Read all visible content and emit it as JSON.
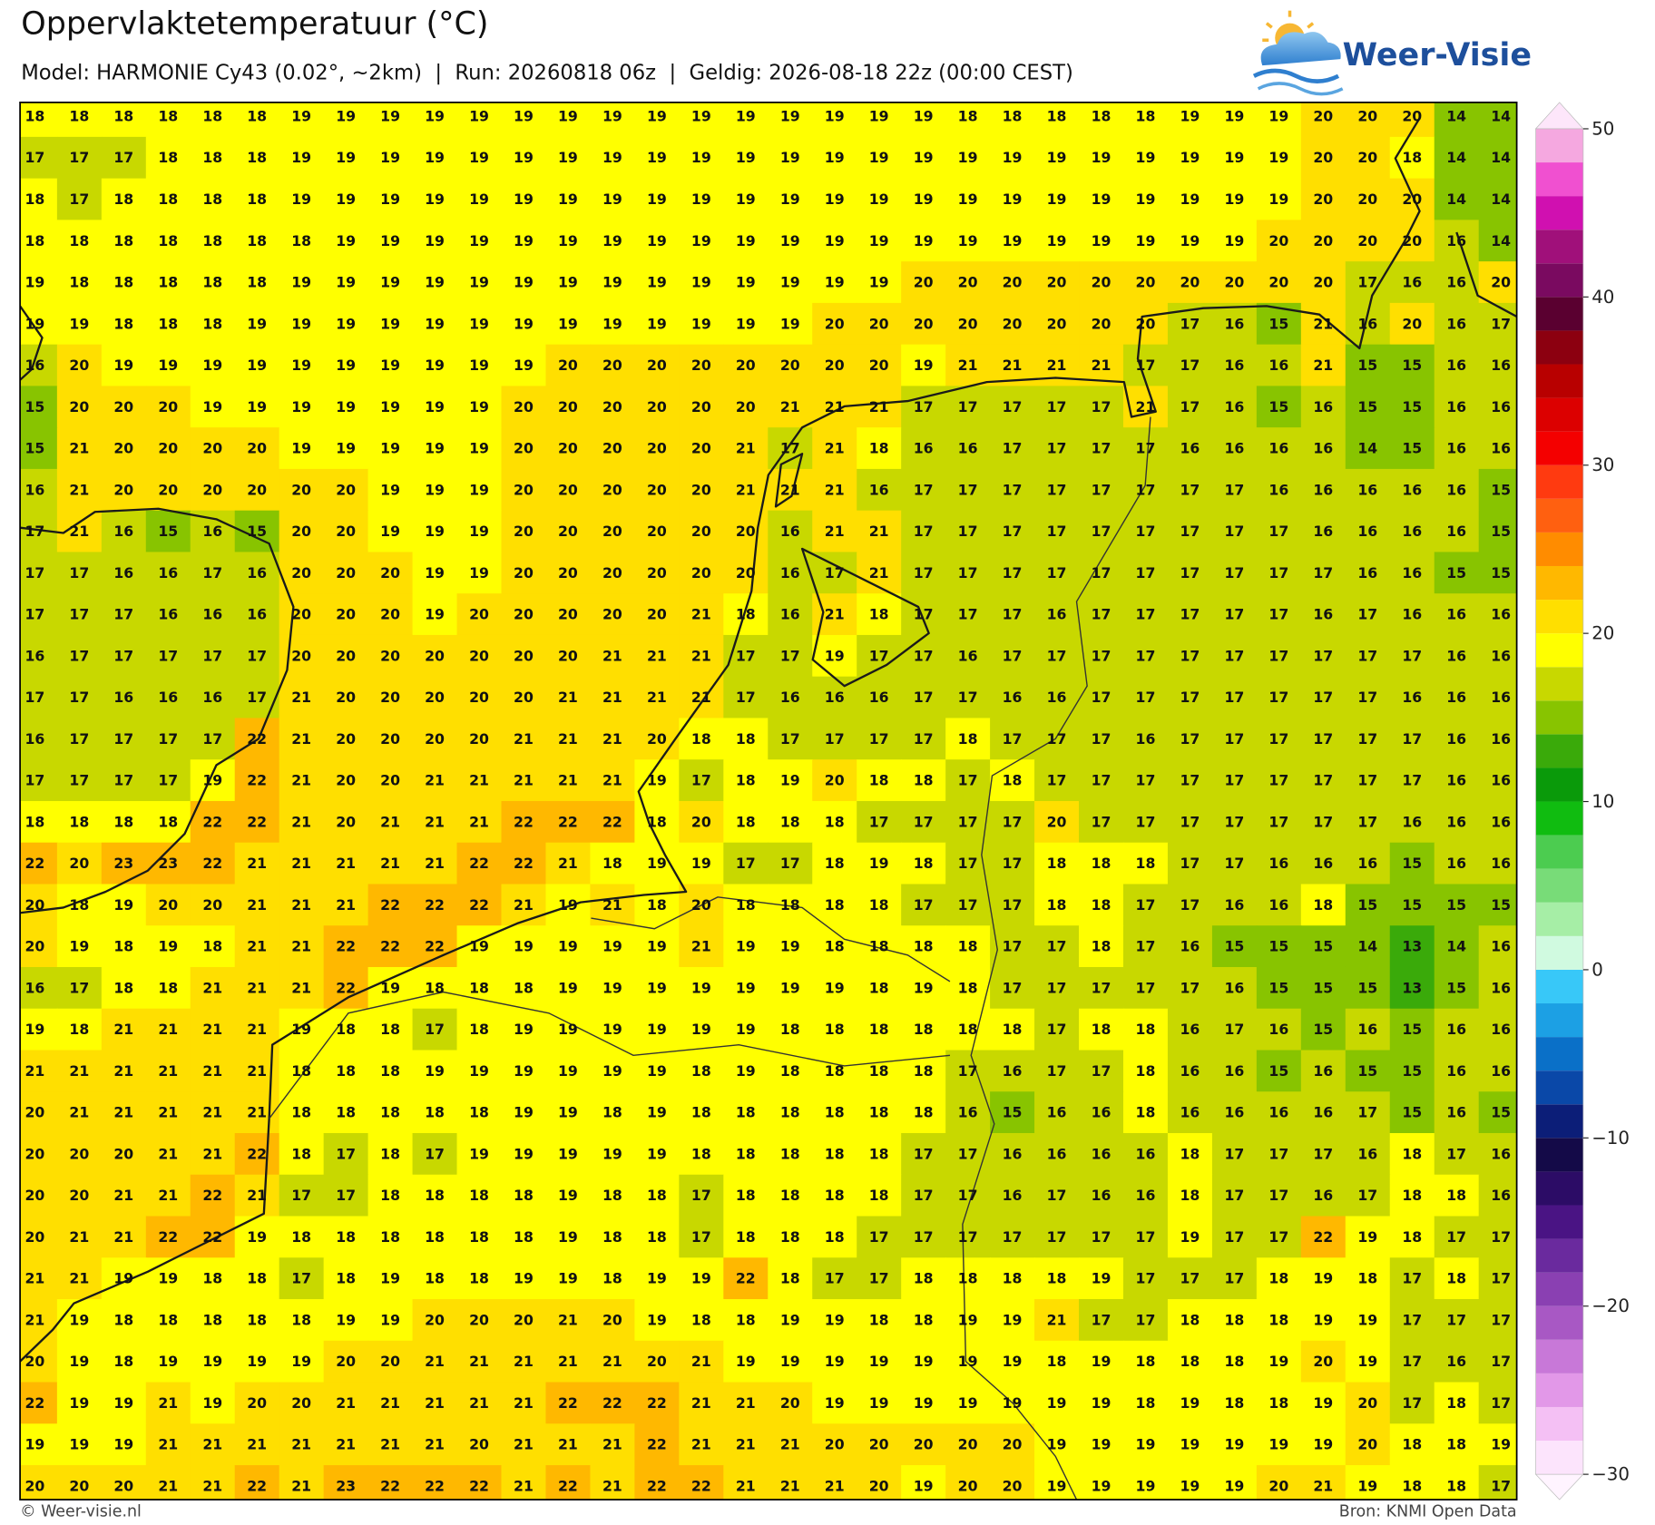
{
  "header": {
    "title": "Oppervlaktetemperatuur (°C)",
    "subtitle": "Model: HARMONIE Cy43 (0.02°, ~2km)  |  Run: 20260818 06z  |  Geldig: 2026-08-18 22z (00:00 CEST)",
    "brand": "Weer-Visie"
  },
  "map": {
    "values": [
      [
        18,
        18,
        18,
        18,
        18,
        18,
        19,
        19,
        19,
        19,
        19,
        19,
        19,
        19,
        19,
        19,
        19,
        19,
        19,
        19,
        19,
        18,
        18,
        18,
        18,
        18,
        19,
        19,
        19,
        20,
        20,
        20,
        14,
        14
      ],
      [
        17,
        17,
        17,
        18,
        18,
        18,
        19,
        19,
        19,
        19,
        19,
        19,
        19,
        19,
        19,
        19,
        19,
        19,
        19,
        19,
        19,
        19,
        19,
        19,
        19,
        19,
        19,
        19,
        19,
        20,
        20,
        18,
        14,
        14
      ],
      [
        18,
        17,
        18,
        18,
        18,
        18,
        19,
        19,
        19,
        19,
        19,
        19,
        19,
        19,
        19,
        19,
        19,
        19,
        19,
        19,
        19,
        19,
        19,
        19,
        19,
        19,
        19,
        19,
        19,
        20,
        20,
        20,
        14,
        14
      ],
      [
        18,
        18,
        18,
        18,
        18,
        18,
        18,
        19,
        19,
        19,
        19,
        19,
        19,
        19,
        19,
        19,
        19,
        19,
        19,
        19,
        19,
        19,
        19,
        19,
        19,
        19,
        19,
        19,
        20,
        20,
        20,
        20,
        16,
        14
      ],
      [
        19,
        18,
        18,
        18,
        18,
        18,
        19,
        19,
        19,
        19,
        19,
        19,
        19,
        19,
        19,
        19,
        19,
        19,
        19,
        19,
        20,
        20,
        20,
        20,
        20,
        20,
        20,
        20,
        20,
        20,
        17,
        16,
        16,
        20
      ],
      [
        19,
        19,
        18,
        18,
        18,
        19,
        19,
        19,
        19,
        19,
        19,
        19,
        19,
        19,
        19,
        19,
        19,
        19,
        20,
        20,
        20,
        20,
        20,
        20,
        20,
        20,
        17,
        16,
        15,
        21,
        16,
        20,
        16,
        17
      ],
      [
        16,
        20,
        19,
        19,
        19,
        19,
        19,
        19,
        19,
        19,
        19,
        19,
        20,
        20,
        20,
        20,
        20,
        20,
        20,
        20,
        19,
        21,
        21,
        21,
        21,
        17,
        17,
        16,
        16,
        21,
        15,
        15,
        16,
        16
      ],
      [
        15,
        20,
        20,
        20,
        19,
        19,
        19,
        19,
        19,
        19,
        19,
        20,
        20,
        20,
        20,
        20,
        20,
        21,
        21,
        21,
        17,
        17,
        17,
        17,
        17,
        21,
        17,
        16,
        15,
        16,
        15,
        15,
        16,
        16
      ],
      [
        15,
        21,
        20,
        20,
        20,
        20,
        19,
        19,
        19,
        19,
        19,
        20,
        20,
        20,
        20,
        20,
        21,
        17,
        21,
        18,
        16,
        16,
        17,
        17,
        17,
        17,
        16,
        16,
        16,
        16,
        14,
        15,
        16,
        16
      ],
      [
        16,
        21,
        20,
        20,
        20,
        20,
        20,
        20,
        19,
        19,
        19,
        20,
        20,
        20,
        20,
        20,
        21,
        21,
        21,
        16,
        17,
        17,
        17,
        17,
        17,
        17,
        17,
        17,
        16,
        16,
        16,
        16,
        16,
        15
      ],
      [
        17,
        21,
        16,
        15,
        16,
        15,
        20,
        20,
        19,
        19,
        19,
        20,
        20,
        20,
        20,
        20,
        20,
        16,
        21,
        21,
        17,
        17,
        17,
        17,
        17,
        17,
        17,
        17,
        17,
        16,
        16,
        16,
        16,
        15
      ],
      [
        17,
        17,
        16,
        16,
        17,
        16,
        20,
        20,
        20,
        19,
        19,
        20,
        20,
        20,
        20,
        20,
        20,
        16,
        17,
        21,
        17,
        17,
        17,
        17,
        17,
        17,
        17,
        17,
        17,
        17,
        16,
        16,
        15,
        15
      ],
      [
        17,
        17,
        17,
        16,
        16,
        16,
        20,
        20,
        20,
        19,
        20,
        20,
        20,
        20,
        20,
        21,
        18,
        16,
        21,
        18,
        17,
        17,
        17,
        16,
        17,
        17,
        17,
        17,
        17,
        16,
        17,
        16,
        16,
        16
      ],
      [
        16,
        17,
        17,
        17,
        17,
        17,
        20,
        20,
        20,
        20,
        20,
        20,
        20,
        21,
        21,
        21,
        17,
        17,
        19,
        17,
        17,
        16,
        17,
        17,
        17,
        17,
        17,
        17,
        17,
        17,
        17,
        17,
        16,
        16
      ],
      [
        17,
        17,
        16,
        16,
        16,
        17,
        21,
        20,
        20,
        20,
        20,
        20,
        21,
        21,
        21,
        21,
        17,
        16,
        16,
        16,
        17,
        17,
        16,
        16,
        17,
        17,
        17,
        17,
        17,
        17,
        17,
        16,
        16,
        16
      ],
      [
        16,
        17,
        17,
        17,
        17,
        22,
        21,
        20,
        20,
        20,
        20,
        21,
        21,
        21,
        20,
        18,
        18,
        17,
        17,
        17,
        17,
        18,
        17,
        17,
        17,
        16,
        17,
        17,
        17,
        17,
        17,
        17,
        16,
        16
      ],
      [
        17,
        17,
        17,
        17,
        19,
        22,
        21,
        20,
        20,
        21,
        21,
        21,
        21,
        21,
        19,
        17,
        18,
        19,
        20,
        18,
        18,
        17,
        18,
        17,
        17,
        17,
        17,
        17,
        17,
        17,
        17,
        17,
        16,
        16
      ],
      [
        18,
        18,
        18,
        18,
        22,
        22,
        21,
        20,
        21,
        21,
        21,
        22,
        22,
        22,
        18,
        20,
        18,
        18,
        18,
        17,
        17,
        17,
        17,
        20,
        17,
        17,
        17,
        17,
        17,
        17,
        17,
        16,
        16,
        16
      ],
      [
        22,
        20,
        23,
        23,
        22,
        21,
        21,
        21,
        21,
        21,
        22,
        22,
        21,
        18,
        19,
        19,
        17,
        17,
        18,
        19,
        18,
        17,
        17,
        18,
        18,
        18,
        17,
        17,
        16,
        16,
        16,
        15,
        16,
        16
      ],
      [
        20,
        18,
        19,
        20,
        20,
        21,
        21,
        21,
        22,
        22,
        22,
        21,
        19,
        21,
        18,
        20,
        18,
        18,
        18,
        18,
        17,
        17,
        17,
        18,
        18,
        17,
        17,
        16,
        16,
        18,
        15,
        15,
        15,
        15
      ],
      [
        20,
        19,
        18,
        19,
        18,
        21,
        21,
        22,
        22,
        22,
        19,
        19,
        19,
        19,
        19,
        21,
        19,
        19,
        18,
        18,
        18,
        18,
        17,
        17,
        18,
        17,
        16,
        15,
        15,
        15,
        14,
        13,
        14,
        16
      ],
      [
        16,
        17,
        18,
        18,
        21,
        21,
        21,
        22,
        19,
        18,
        18,
        18,
        19,
        19,
        19,
        19,
        19,
        19,
        19,
        18,
        19,
        18,
        17,
        17,
        17,
        17,
        17,
        16,
        15,
        15,
        15,
        13,
        15,
        16
      ],
      [
        19,
        18,
        21,
        21,
        21,
        21,
        19,
        18,
        18,
        17,
        18,
        19,
        19,
        19,
        19,
        19,
        19,
        18,
        18,
        18,
        18,
        18,
        18,
        17,
        18,
        18,
        16,
        17,
        16,
        15,
        16,
        15,
        16,
        16
      ],
      [
        21,
        21,
        21,
        21,
        21,
        21,
        18,
        18,
        18,
        19,
        19,
        19,
        19,
        19,
        19,
        18,
        19,
        18,
        18,
        18,
        18,
        17,
        16,
        17,
        17,
        18,
        16,
        16,
        15,
        16,
        15,
        15,
        16,
        16
      ],
      [
        20,
        21,
        21,
        21,
        21,
        21,
        18,
        18,
        18,
        18,
        18,
        19,
        19,
        18,
        19,
        18,
        18,
        18,
        18,
        18,
        18,
        16,
        15,
        16,
        16,
        18,
        16,
        16,
        16,
        16,
        17,
        15,
        16,
        15
      ],
      [
        20,
        20,
        20,
        21,
        21,
        22,
        18,
        17,
        18,
        17,
        19,
        19,
        19,
        19,
        19,
        18,
        18,
        18,
        18,
        18,
        17,
        17,
        16,
        16,
        16,
        16,
        18,
        17,
        17,
        17,
        16,
        18,
        17,
        16
      ],
      [
        20,
        20,
        21,
        21,
        22,
        21,
        17,
        17,
        18,
        18,
        18,
        18,
        19,
        18,
        18,
        17,
        18,
        18,
        18,
        18,
        17,
        17,
        16,
        17,
        16,
        16,
        18,
        17,
        17,
        16,
        17,
        18,
        18,
        16
      ],
      [
        20,
        21,
        21,
        22,
        22,
        19,
        18,
        18,
        18,
        18,
        18,
        18,
        19,
        18,
        18,
        17,
        18,
        18,
        18,
        17,
        17,
        17,
        17,
        17,
        17,
        17,
        19,
        17,
        17,
        22,
        19,
        18,
        17,
        17
      ],
      [
        21,
        21,
        19,
        19,
        18,
        18,
        17,
        18,
        19,
        18,
        18,
        19,
        19,
        18,
        19,
        19,
        22,
        18,
        17,
        17,
        18,
        18,
        18,
        18,
        19,
        17,
        17,
        17,
        18,
        19,
        18,
        17,
        18,
        17
      ],
      [
        21,
        19,
        18,
        18,
        18,
        18,
        18,
        19,
        19,
        20,
        20,
        20,
        21,
        20,
        19,
        18,
        18,
        19,
        19,
        18,
        18,
        19,
        19,
        21,
        17,
        17,
        18,
        18,
        18,
        19,
        19,
        17,
        17,
        17
      ],
      [
        20,
        19,
        18,
        19,
        19,
        19,
        19,
        20,
        20,
        21,
        21,
        21,
        21,
        21,
        20,
        21,
        19,
        19,
        19,
        19,
        19,
        19,
        19,
        18,
        19,
        18,
        18,
        18,
        19,
        20,
        19,
        17,
        16,
        17
      ],
      [
        22,
        19,
        19,
        21,
        19,
        20,
        20,
        21,
        21,
        21,
        21,
        21,
        22,
        22,
        22,
        21,
        21,
        20,
        19,
        19,
        19,
        19,
        19,
        19,
        19,
        18,
        19,
        18,
        18,
        19,
        20,
        17,
        18,
        17
      ],
      [
        19,
        19,
        19,
        21,
        21,
        21,
        21,
        21,
        21,
        21,
        20,
        21,
        21,
        21,
        22,
        21,
        21,
        21,
        20,
        20,
        20,
        20,
        20,
        19,
        19,
        19,
        19,
        19,
        19,
        19,
        20,
        18,
        18,
        19
      ],
      [
        20,
        20,
        20,
        21,
        21,
        22,
        21,
        23,
        22,
        22,
        22,
        21,
        22,
        21,
        22,
        22,
        21,
        21,
        21,
        20,
        19,
        20,
        20,
        19,
        19,
        19,
        19,
        19,
        20,
        21,
        19,
        18,
        18,
        17
      ]
    ]
  },
  "colorbar": {
    "lim": [
      -30,
      50
    ],
    "ticks": [
      50,
      40,
      30,
      20,
      10,
      0,
      {
        "value": -10,
        "label": "−10"
      },
      {
        "value": -20,
        "label": "−20"
      },
      {
        "value": -30,
        "label": "−30"
      }
    ],
    "colors": [
      "#fce4fc",
      "#f4c0f4",
      "#e298e8",
      "#c878d8",
      "#a858c4",
      "#8a40b2",
      "#6a2a9e",
      "#4a1484",
      "#2c0c66",
      "#140a48",
      "#0c1e78",
      "#0a48a8",
      "#0a70c8",
      "#1ca0e4",
      "#38c8f8",
      "#d0fae0",
      "#a6eea6",
      "#78dc78",
      "#4ccc50",
      "#10bc10",
      "#0a9a0a",
      "#3aaa0a",
      "#88c400",
      "#c8d800",
      "#ffff00",
      "#ffdf00",
      "#ffb800",
      "#ff8c00",
      "#ff6010",
      "#ff3a10",
      "#f40000",
      "#dc0000",
      "#b80000",
      "#8c0010",
      "#5a0030",
      "#7a0a60",
      "#a0107a",
      "#d010b0",
      "#f050d0",
      "#f5a8e0"
    ]
  },
  "footer": {
    "left": "© Weer-visie.nl",
    "right": "Bron: KNMI Open Data"
  }
}
